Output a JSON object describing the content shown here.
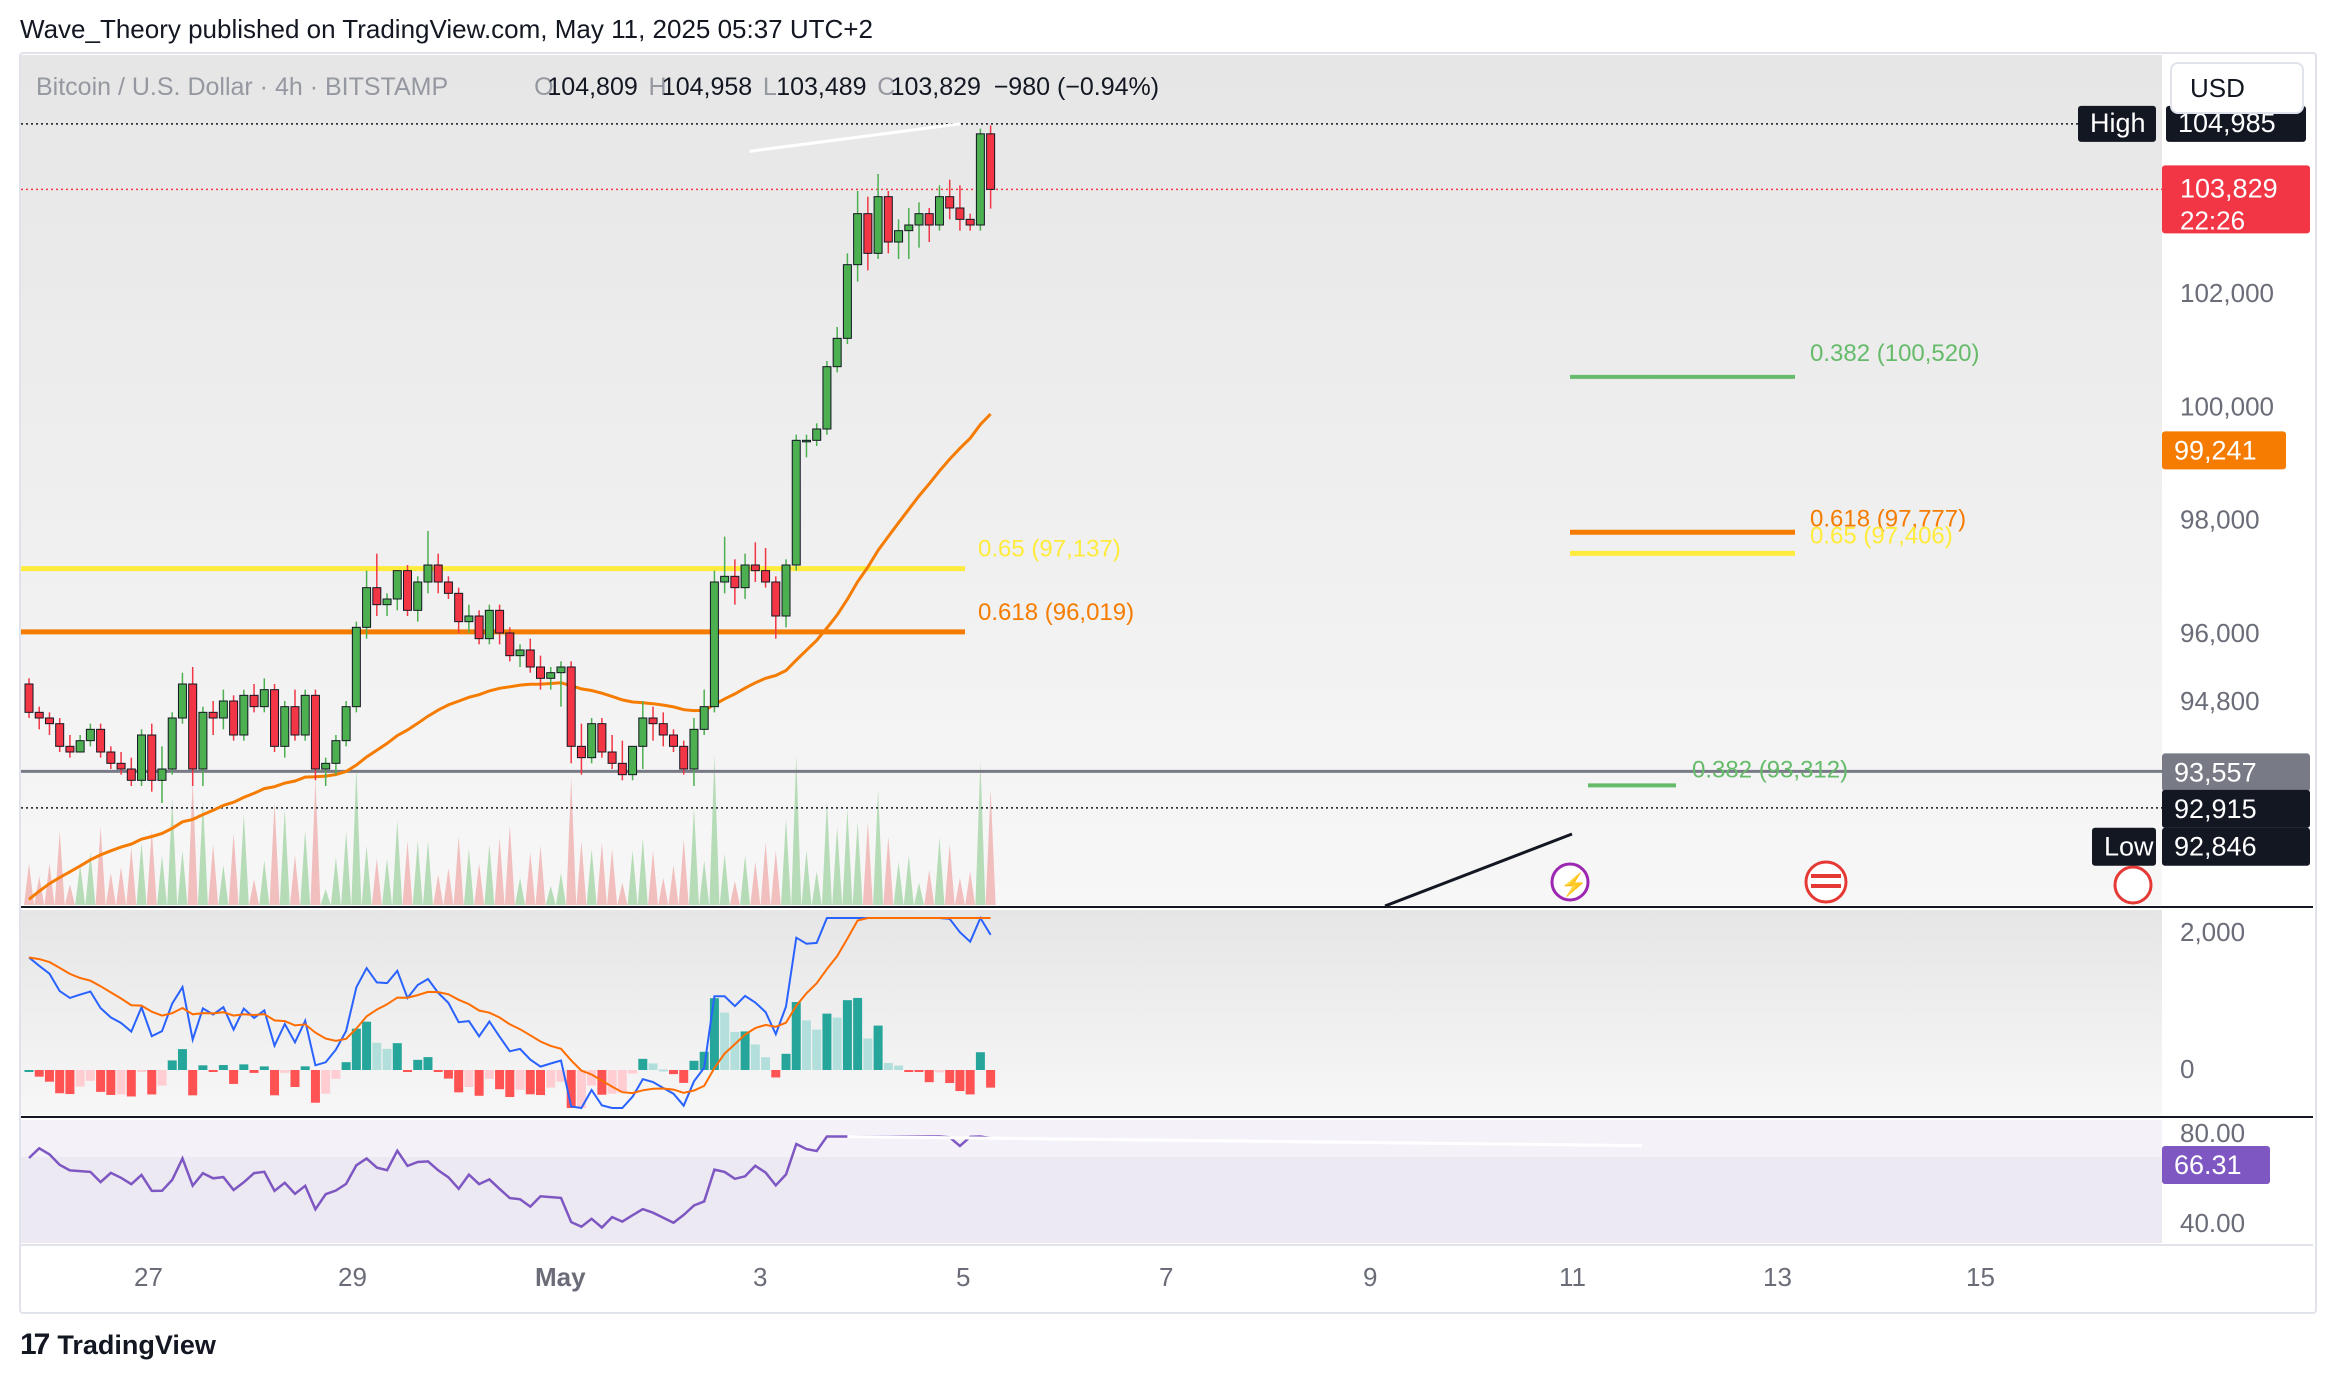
{
  "header": {
    "publisher": "Wave_Theory published on TradingView.com, May 11, 2025 05:37 UTC+2"
  },
  "legend": {
    "symbol": "Bitcoin / U.S. Dollar · 4h · BITSTAMP",
    "open_label": "O",
    "open": "104,809",
    "high_label": "H",
    "high": "104,958",
    "low_label": "L",
    "low": "103,489",
    "close_label": "C",
    "close": "103,829",
    "change": "−980 (−0.94%)"
  },
  "currency_button": "USD",
  "footer": {
    "brand": "TradingView",
    "brand_mark": "17"
  },
  "colors": {
    "up": "#4caf50",
    "down": "#f23645",
    "ema": "#f57c00",
    "fib_yellow": "#ffeb3b",
    "fib_orange": "#f57c00",
    "fib_green": "#66bb6a",
    "macd": "#2962ff",
    "signal": "#ff6d00",
    "rsi": "#7e57c2"
  },
  "chart_data": {
    "type": "candlestick",
    "symbol": "BTCUSD",
    "timeframe": "4h",
    "ylim": [
      91200,
      106200
    ],
    "price_ticks": [
      "102,000",
      "100,000",
      "98,000",
      "96,000",
      "94,800"
    ],
    "x_ticks": [
      "27",
      "29",
      "May",
      "3",
      "5",
      "7",
      "9",
      "11",
      "13",
      "15"
    ],
    "candles": [
      [
        95100,
        95200,
        94500,
        94600
      ],
      [
        94600,
        94700,
        94300,
        94500
      ],
      [
        94500,
        94600,
        94200,
        94400
      ],
      [
        94400,
        94500,
        93900,
        94000
      ],
      [
        94000,
        94200,
        93800,
        93900
      ],
      [
        93900,
        94200,
        93900,
        94100
      ],
      [
        94100,
        94400,
        94000,
        94300
      ],
      [
        94300,
        94400,
        93800,
        93900
      ],
      [
        93900,
        94000,
        93600,
        93700
      ],
      [
        93700,
        93900,
        93500,
        93600
      ],
      [
        93600,
        93800,
        93300,
        93400
      ],
      [
        93400,
        94300,
        93300,
        94200
      ],
      [
        94200,
        94400,
        93200,
        93400
      ],
      [
        93400,
        94000,
        93000,
        93600
      ],
      [
        93600,
        94600,
        93500,
        94500
      ],
      [
        94500,
        95300,
        94400,
        95100
      ],
      [
        95100,
        95400,
        93300,
        93600
      ],
      [
        93600,
        94700,
        93300,
        94600
      ],
      [
        94600,
        94800,
        94200,
        94500
      ],
      [
        94500,
        95000,
        94300,
        94800
      ],
      [
        94800,
        94900,
        94100,
        94200
      ],
      [
        94200,
        95000,
        94100,
        94900
      ],
      [
        94900,
        95100,
        94600,
        94700
      ],
      [
        94700,
        95200,
        94600,
        95000
      ],
      [
        95000,
        95100,
        93900,
        94000
      ],
      [
        94000,
        94800,
        93800,
        94700
      ],
      [
        94700,
        95000,
        94100,
        94200
      ],
      [
        94200,
        95000,
        94100,
        94900
      ],
      [
        94900,
        95000,
        93400,
        93600
      ],
      [
        93600,
        93800,
        93300,
        93700
      ],
      [
        93700,
        94200,
        93500,
        94100
      ],
      [
        94100,
        94800,
        94000,
        94700
      ],
      [
        94700,
        96200,
        94600,
        96100
      ],
      [
        96100,
        97100,
        95900,
        96800
      ],
      [
        96800,
        97400,
        96300,
        96500
      ],
      [
        96500,
        96700,
        96300,
        96600
      ],
      [
        96600,
        97100,
        96400,
        97100
      ],
      [
        97100,
        97200,
        96300,
        96400
      ],
      [
        96400,
        97000,
        96200,
        96900
      ],
      [
        96900,
        97800,
        96700,
        97200
      ],
      [
        97200,
        97400,
        96700,
        96900
      ],
      [
        96900,
        97000,
        96600,
        96700
      ],
      [
        96700,
        96800,
        96000,
        96200
      ],
      [
        96200,
        96500,
        96000,
        96300
      ],
      [
        96300,
        96400,
        95800,
        95900
      ],
      [
        95900,
        96500,
        95800,
        96400
      ],
      [
        96400,
        96500,
        95800,
        96000
      ],
      [
        96000,
        96100,
        95500,
        95600
      ],
      [
        95600,
        95800,
        95400,
        95700
      ],
      [
        95700,
        95900,
        95300,
        95400
      ],
      [
        95400,
        95600,
        95000,
        95200
      ],
      [
        95200,
        95400,
        95000,
        95300
      ],
      [
        95300,
        95500,
        94700,
        95400
      ],
      [
        95400,
        95500,
        93700,
        94000
      ],
      [
        94000,
        94400,
        93500,
        93800
      ],
      [
        93800,
        94500,
        93700,
        94400
      ],
      [
        94400,
        94500,
        93800,
        93900
      ],
      [
        93900,
        94200,
        93600,
        93700
      ],
      [
        93700,
        94100,
        93400,
        93500
      ],
      [
        93500,
        94000,
        93400,
        94000
      ],
      [
        94000,
        94800,
        93600,
        94500
      ],
      [
        94500,
        94700,
        94100,
        94400
      ],
      [
        94400,
        94600,
        94000,
        94200
      ],
      [
        94200,
        94300,
        93900,
        94000
      ],
      [
        94000,
        94100,
        93500,
        93600
      ],
      [
        93600,
        94500,
        93300,
        94300
      ],
      [
        94300,
        95000,
        94200,
        94700
      ],
      [
        94700,
        97100,
        94600,
        96900
      ],
      [
        96900,
        97700,
        96700,
        97000
      ],
      [
        97000,
        97300,
        96500,
        96800
      ],
      [
        96800,
        97400,
        96600,
        97200
      ],
      [
        97200,
        97600,
        96900,
        97100
      ],
      [
        97100,
        97500,
        96800,
        96900
      ],
      [
        96900,
        97000,
        95900,
        96300
      ],
      [
        96300,
        97300,
        96100,
        97200
      ],
      [
        97200,
        99500,
        97100,
        99400
      ],
      [
        99400,
        99500,
        99100,
        99400
      ],
      [
        99400,
        99700,
        99300,
        99600
      ],
      [
        99600,
        100800,
        99500,
        100700
      ],
      [
        100700,
        101400,
        100600,
        101200
      ],
      [
        101200,
        102700,
        101100,
        102500
      ],
      [
        102500,
        103800,
        102200,
        103400
      ],
      [
        103400,
        103700,
        102400,
        102700
      ],
      [
        102700,
        104100,
        102600,
        103700
      ],
      [
        103700,
        103800,
        102700,
        102900
      ],
      [
        102900,
        103300,
        102600,
        103100
      ],
      [
        103100,
        103500,
        102600,
        103200
      ],
      [
        103200,
        103600,
        102800,
        103400
      ],
      [
        103400,
        103500,
        102900,
        103200
      ],
      [
        103200,
        103900,
        103100,
        103700
      ],
      [
        103700,
        104000,
        103300,
        103500
      ],
      [
        103500,
        103900,
        103100,
        103300
      ],
      [
        103300,
        103400,
        103100,
        103200
      ],
      [
        103200,
        104900,
        103100,
        104809
      ],
      [
        104809,
        104958,
        103489,
        103829
      ]
    ],
    "ema_label": "99,241",
    "levels": {
      "high_label": "High",
      "high_value": "104,985",
      "last_price": "103,829",
      "countdown": "22:26",
      "gray_level": "93,557",
      "black_level": "92,915",
      "low_label": "Low",
      "low_value": "92,846"
    },
    "fib_levels": [
      {
        "label": "0.382 (100,520)",
        "price": 100520,
        "color": "green"
      },
      {
        "label": "0.618 (97,777)",
        "price": 97777,
        "color": "orange"
      },
      {
        "label": "0.65 (97,406)",
        "price": 97406,
        "color": "yellow"
      },
      {
        "label": "0.65 (97,137)",
        "price": 97137,
        "color": "yellow"
      },
      {
        "label": "0.618 (96,019)",
        "price": 96019,
        "color": "orange"
      },
      {
        "label": "0.382 (93,312)",
        "price": 93312,
        "color": "green"
      }
    ],
    "macd_panel": {
      "ticks": [
        "2,000",
        "0"
      ]
    },
    "rsi_panel": {
      "ticks": [
        "80.00",
        "40.00"
      ],
      "current": "66.31"
    }
  }
}
